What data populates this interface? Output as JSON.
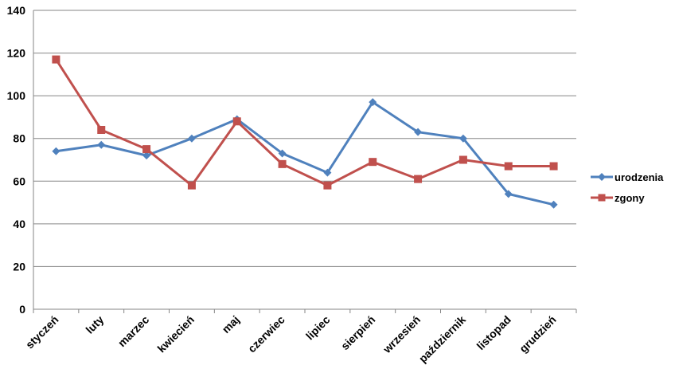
{
  "chart_data": {
    "type": "line",
    "title": "",
    "xlabel": "",
    "ylabel": "",
    "categories": [
      "styczeń",
      "luty",
      "marzec",
      "kwiecień",
      "maj",
      "czerwiec",
      "lipiec",
      "sierpień",
      "wrzesień",
      "październik",
      "listopad",
      "grudzień"
    ],
    "ylim": [
      0,
      140
    ],
    "yticks": [
      0,
      20,
      40,
      60,
      80,
      100,
      120,
      140
    ],
    "grid": true,
    "legend_position": "right",
    "series": [
      {
        "name": "urodzenia",
        "color": "#4F81BD",
        "marker": "diamond",
        "values": [
          74,
          77,
          72,
          80,
          89,
          73,
          64,
          97,
          83,
          80,
          54,
          49
        ]
      },
      {
        "name": "zgony",
        "color": "#C0504D",
        "marker": "square",
        "values": [
          117,
          84,
          75,
          58,
          88,
          68,
          58,
          69,
          61,
          70,
          67,
          67
        ]
      }
    ]
  }
}
